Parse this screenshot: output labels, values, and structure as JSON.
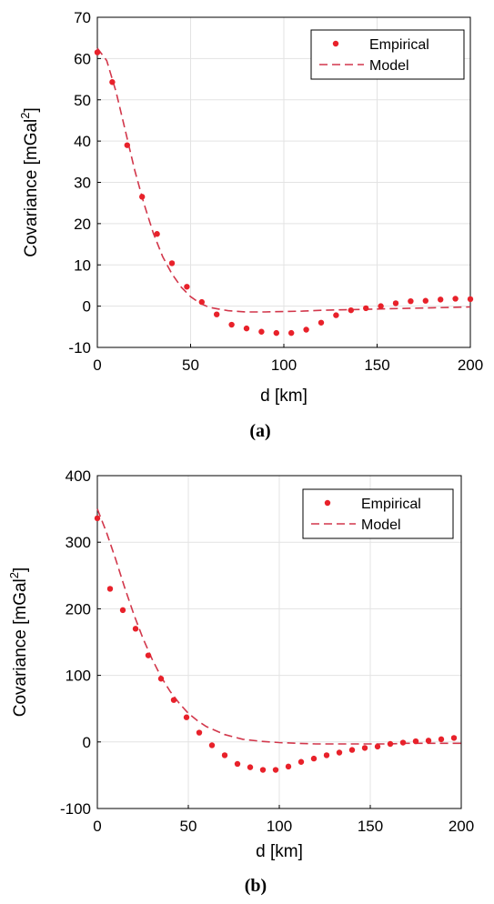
{
  "chart_data": [
    {
      "type": "scatter",
      "panel_label": "(a)",
      "xlabel": "d [km]",
      "ylabel_main": "Covariance [mGal",
      "ylabel_sup": "2",
      "ylabel_end": "]",
      "xlim": [
        0,
        200
      ],
      "ylim": [
        -10,
        70
      ],
      "xticks": [
        0,
        50,
        100,
        150,
        200
      ],
      "yticks": [
        -10,
        0,
        10,
        20,
        30,
        40,
        50,
        60,
        70
      ],
      "grid": true,
      "legend_position": "top-right",
      "colors": {
        "series": "#e8212a",
        "model": "#d2374b"
      },
      "series": [
        {
          "name": "Empirical",
          "style": "dots",
          "x": [
            0,
            8,
            16,
            24,
            32,
            40,
            48,
            56,
            64,
            72,
            80,
            88,
            96,
            104,
            112,
            120,
            128,
            136,
            144,
            152,
            160,
            168,
            176,
            184,
            192,
            200
          ],
          "y": [
            61.5,
            54.3,
            39.0,
            26.5,
            17.5,
            10.4,
            4.7,
            1.0,
            -2.0,
            -4.5,
            -5.4,
            -6.2,
            -6.5,
            -6.5,
            -5.7,
            -4.0,
            -2.2,
            -1.0,
            -0.5,
            0.0,
            0.7,
            1.2,
            1.3,
            1.6,
            1.8,
            1.7
          ]
        },
        {
          "name": "Model",
          "style": "dashed",
          "x": [
            0,
            5,
            10,
            15,
            20,
            25,
            30,
            35,
            40,
            45,
            50,
            55,
            60,
            70,
            80,
            90,
            100,
            110,
            120,
            130,
            140,
            150,
            160,
            170,
            180,
            190,
            200
          ],
          "y": [
            62.5,
            59.5,
            52.0,
            42.5,
            33.0,
            24.8,
            17.7,
            12.0,
            7.8,
            4.6,
            2.3,
            0.7,
            -0.3,
            -1.1,
            -1.4,
            -1.4,
            -1.3,
            -1.2,
            -1.0,
            -0.9,
            -0.8,
            -0.7,
            -0.6,
            -0.5,
            -0.4,
            -0.3,
            -0.2
          ]
        }
      ]
    },
    {
      "type": "scatter",
      "panel_label": "(b)",
      "xlabel": "d [km]",
      "ylabel_main": "Covariance [mGal",
      "ylabel_sup": "2",
      "ylabel_end": "]",
      "xlim": [
        0,
        200
      ],
      "ylim": [
        -100,
        400
      ],
      "xticks": [
        0,
        50,
        100,
        150,
        200
      ],
      "yticks": [
        -100,
        0,
        100,
        200,
        300,
        400
      ],
      "grid": true,
      "legend_position": "top-right",
      "colors": {
        "series": "#e8212a",
        "model": "#d2374b"
      },
      "series": [
        {
          "name": "Empirical",
          "style": "dots",
          "x": [
            0,
            7,
            14,
            21,
            28,
            35,
            42,
            49,
            56,
            63,
            70,
            77,
            84,
            91,
            98,
            105,
            112,
            119,
            126,
            133,
            140,
            147,
            154,
            161,
            168,
            175,
            182,
            189,
            196
          ],
          "y": [
            336,
            230,
            198,
            170,
            130,
            95,
            63,
            37,
            14,
            -5,
            -20,
            -33,
            -38,
            -42,
            -42,
            -37,
            -30,
            -25,
            -20,
            -16,
            -12,
            -9,
            -7,
            -3,
            -1,
            1,
            2,
            4,
            6
          ]
        },
        {
          "name": "Model",
          "style": "dashed",
          "x": [
            0,
            5,
            10,
            15,
            20,
            25,
            30,
            35,
            40,
            45,
            50,
            55,
            60,
            70,
            80,
            90,
            100,
            110,
            120,
            130,
            140,
            150,
            160,
            170,
            180,
            190,
            200
          ],
          "y": [
            350,
            315,
            275,
            232,
            192,
            156,
            125,
            98,
            76,
            58,
            43,
            32,
            23,
            11,
            4,
            1,
            -1,
            -2,
            -3,
            -3,
            -3,
            -3,
            -3,
            -2,
            -2,
            -2,
            -2
          ]
        }
      ]
    }
  ]
}
